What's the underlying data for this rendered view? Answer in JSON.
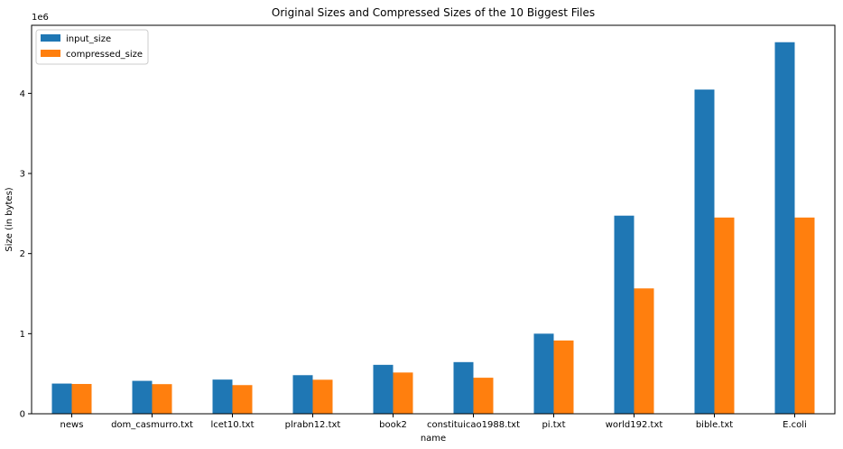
{
  "chart_data": {
    "type": "bar",
    "title": "Original Sizes and Compressed Sizes of the 10 Biggest Files",
    "xlabel": "name",
    "ylabel": "Size (in bytes)",
    "y_exponent_label": "1e6",
    "y_scale_factor": 1000000,
    "ylim": [
      0,
      4850000
    ],
    "yticks": [
      0,
      1,
      2,
      3,
      4
    ],
    "grid": false,
    "legend_position": "top-left",
    "categories": [
      "news",
      "dom_casmurro.txt",
      "lcet10.txt",
      "plrabn12.txt",
      "book2",
      "constituicao1988.txt",
      "pi.txt",
      "world192.txt",
      "bible.txt",
      "E.coli"
    ],
    "series": [
      {
        "name": "input_size",
        "color": "#1f77b4",
        "values": [
          377109,
          411000,
          426754,
          481861,
          610856,
          645000,
          1000000,
          2473400,
          4047392,
          4638690
        ]
      },
      {
        "name": "compressed_size",
        "color": "#ff7f0e",
        "values": [
          372000,
          370000,
          358000,
          425000,
          515000,
          450000,
          915000,
          1565000,
          2450000,
          2450000
        ]
      }
    ]
  }
}
